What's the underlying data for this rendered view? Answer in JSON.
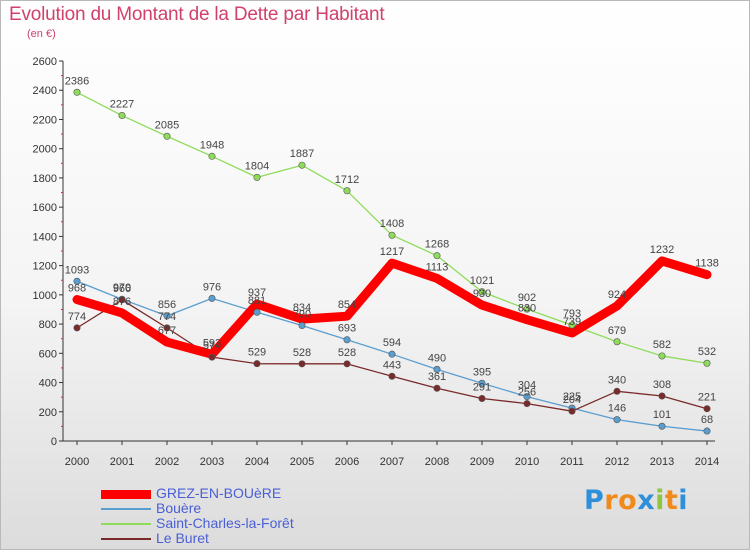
{
  "header": {
    "title": "Evolution du Montant de la Dette par Habitant",
    "subtitle": "(en €)"
  },
  "logo": {
    "text": "Proxiti"
  },
  "chart_data": {
    "type": "line",
    "title": "Evolution du Montant de la Dette par Habitant",
    "subtitle": "(en €)",
    "xlabel": "",
    "ylabel": "",
    "categories": [
      "2000",
      "2001",
      "2002",
      "2003",
      "2004",
      "2005",
      "2006",
      "2007",
      "2008",
      "2009",
      "2010",
      "2011",
      "2012",
      "2013",
      "2014"
    ],
    "ylim": [
      0,
      2600
    ],
    "yticks": [
      0,
      200,
      400,
      600,
      800,
      1000,
      1200,
      1400,
      1600,
      1800,
      2000,
      2200,
      2400,
      2600
    ],
    "grid": false,
    "legend_position": "bottom-left",
    "series": [
      {
        "name": "GREZ-EN-BOUèRE",
        "color": "#ff0000",
        "width": "thick",
        "markers": false,
        "values": [
          968,
          876,
          677,
          593,
          937,
          834,
          854,
          1217,
          1113,
          930,
          830,
          739,
          924,
          1232,
          1138
        ]
      },
      {
        "name": "Bouère",
        "color": "#5a9ed0",
        "width": "thin",
        "markers": true,
        "values": [
          1093,
          970,
          856,
          976,
          881,
          790,
          693,
          594,
          490,
          395,
          304,
          225,
          146,
          101,
          68
        ]
      },
      {
        "name": "Saint-Charles-la-Forêt",
        "color": "#8fdc5a",
        "width": "thin",
        "markers": true,
        "values": [
          2386,
          2227,
          2085,
          1948,
          1804,
          1887,
          1712,
          1408,
          1268,
          1021,
          902,
          793,
          679,
          582,
          532
        ]
      },
      {
        "name": "Le Buret",
        "color": "#7a2a2a",
        "width": "thin",
        "markers": true,
        "values": [
          774,
          966,
          774,
          574,
          529,
          528,
          528,
          443,
          361,
          291,
          256,
          204,
          340,
          308,
          221
        ]
      }
    ]
  }
}
